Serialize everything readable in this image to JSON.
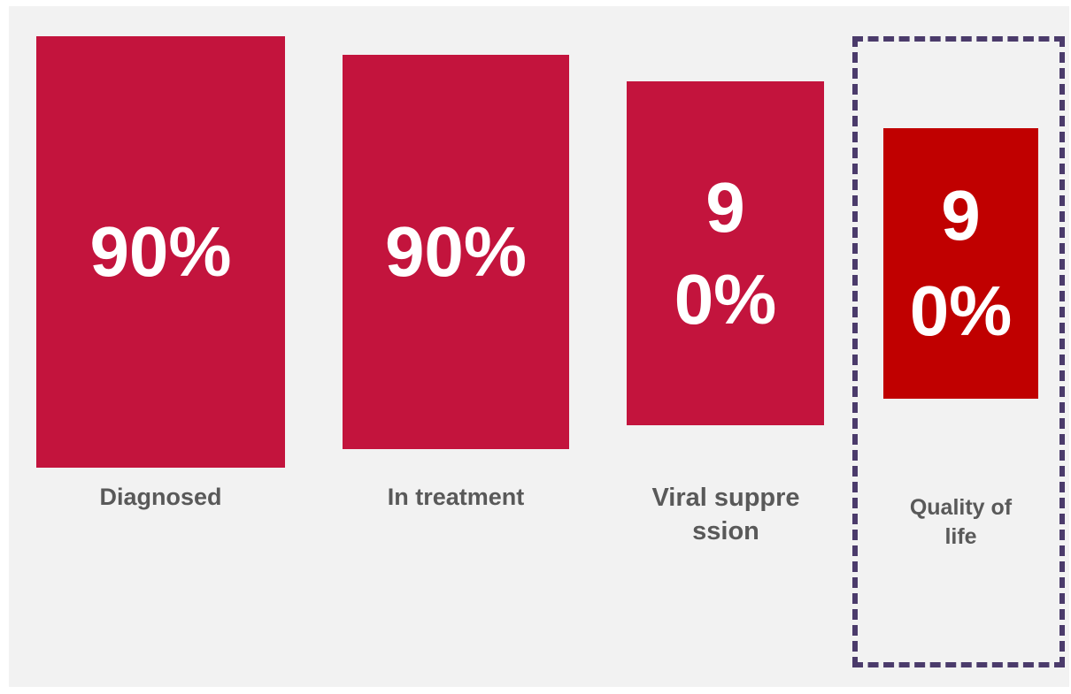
{
  "colors": {
    "bar": "#c3143d",
    "bar_highlight": "#c00000",
    "highlight_border": "#4b3b6b",
    "label_text": "#595959",
    "background": "#f2f2f2"
  },
  "columns": [
    {
      "value_text": "90%",
      "label": "Diagnosed"
    },
    {
      "value_text": "90%",
      "label": "In treatment"
    },
    {
      "value_text": "90%",
      "label": "Viral suppression"
    },
    {
      "value_text": "90%",
      "label": "Quality of life",
      "highlighted": true
    }
  ]
}
